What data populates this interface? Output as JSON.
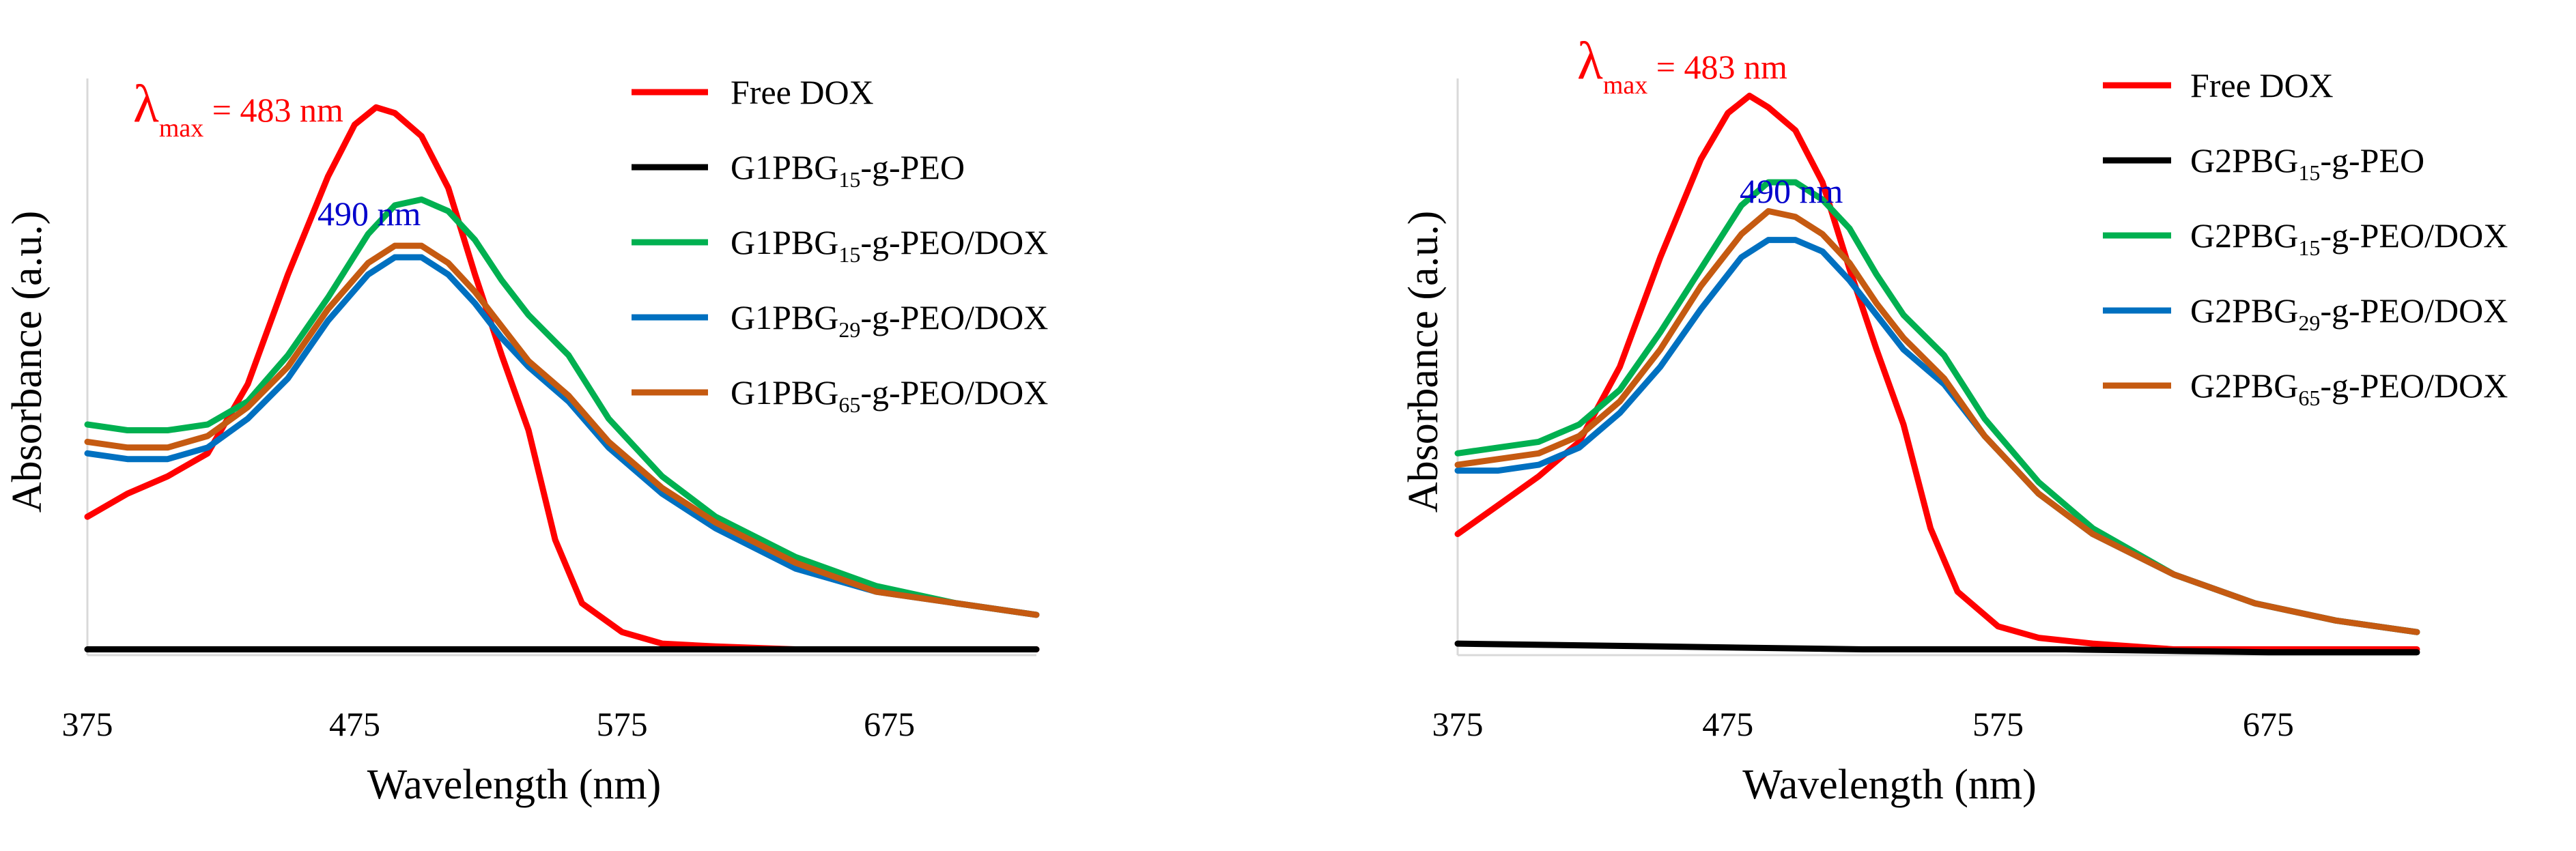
{
  "chart_data": [
    {
      "type": "line",
      "title": "",
      "xlabel": "Wavelength (nm)",
      "ylabel": "Absorbance (a.u.)",
      "xlim": [
        375,
        730
      ],
      "ylim": [
        0,
        1.0
      ],
      "x_ticks": [
        "375",
        "475",
        "575",
        "675"
      ],
      "grid": false,
      "legend_position": "top-right",
      "annotations": [
        {
          "lambda": "λ",
          "subscript": "max",
          "text": " = 483 nm",
          "color": "#ff0000"
        },
        {
          "text": "490 nm",
          "color": "#0000cc"
        }
      ],
      "series": [
        {
          "name_main": "Free DOX",
          "name_sub": "",
          "name_rest": "",
          "color": "#ff0000",
          "x": [
            375,
            390,
            405,
            420,
            435,
            450,
            465,
            475,
            483,
            490,
            500,
            510,
            520,
            530,
            540,
            550,
            560,
            575,
            590,
            610,
            640,
            670,
            700,
            730
          ],
          "y": [
            0.24,
            0.28,
            0.31,
            0.35,
            0.47,
            0.66,
            0.83,
            0.92,
            0.95,
            0.94,
            0.9,
            0.81,
            0.66,
            0.52,
            0.39,
            0.2,
            0.09,
            0.04,
            0.02,
            0.015,
            0.01,
            0.01,
            0.01,
            0.01
          ]
        },
        {
          "name_main": "G1PBG",
          "name_sub": "15",
          "name_rest": "-g-PEO",
          "color": "#000000",
          "x": [
            375,
            450,
            525,
            600,
            675,
            730
          ],
          "y": [
            0.01,
            0.01,
            0.01,
            0.01,
            0.01,
            0.01
          ]
        },
        {
          "name_main": "G1PBG",
          "name_sub": "15",
          "name_rest": "-g-PEO/DOX",
          "color": "#00b050",
          "x": [
            375,
            390,
            405,
            420,
            435,
            450,
            465,
            480,
            490,
            500,
            510,
            520,
            530,
            540,
            555,
            570,
            590,
            610,
            640,
            670,
            700,
            730
          ],
          "y": [
            0.4,
            0.39,
            0.39,
            0.4,
            0.44,
            0.52,
            0.62,
            0.73,
            0.78,
            0.79,
            0.77,
            0.72,
            0.65,
            0.59,
            0.52,
            0.41,
            0.31,
            0.24,
            0.17,
            0.12,
            0.09,
            0.07
          ]
        },
        {
          "name_main": "G1PBG",
          "name_sub": "29",
          "name_rest": "-g-PEO/DOX",
          "color": "#0070c0",
          "x": [
            375,
            390,
            405,
            420,
            435,
            450,
            465,
            480,
            490,
            500,
            510,
            520,
            530,
            540,
            555,
            570,
            590,
            610,
            640,
            670,
            700,
            730
          ],
          "y": [
            0.35,
            0.34,
            0.34,
            0.36,
            0.41,
            0.48,
            0.58,
            0.66,
            0.69,
            0.69,
            0.66,
            0.61,
            0.55,
            0.5,
            0.44,
            0.36,
            0.28,
            0.22,
            0.15,
            0.11,
            0.09,
            0.07
          ]
        },
        {
          "name_main": "G1PBG",
          "name_sub": "65",
          "name_rest": "-g-PEO/DOX",
          "color": "#c55a11",
          "x": [
            375,
            390,
            405,
            420,
            435,
            450,
            465,
            480,
            490,
            500,
            510,
            520,
            530,
            540,
            555,
            570,
            590,
            610,
            640,
            670,
            700,
            730
          ],
          "y": [
            0.37,
            0.36,
            0.36,
            0.38,
            0.43,
            0.5,
            0.6,
            0.68,
            0.71,
            0.71,
            0.68,
            0.63,
            0.57,
            0.51,
            0.45,
            0.37,
            0.29,
            0.23,
            0.16,
            0.11,
            0.09,
            0.07
          ]
        }
      ]
    },
    {
      "type": "line",
      "title": "",
      "xlabel": "Wavelength (nm)",
      "ylabel": "Absorbance (a.u.)",
      "xlim": [
        375,
        730
      ],
      "ylim": [
        0,
        1.0
      ],
      "x_ticks": [
        "375",
        "475",
        "575",
        "675"
      ],
      "grid": false,
      "legend_position": "top-right",
      "annotations": [
        {
          "lambda": "λ",
          "subscript": "max",
          "text": " = 483 nm",
          "color": "#ff0000"
        },
        {
          "text": "490 nm",
          "color": "#0000cc"
        }
      ],
      "series": [
        {
          "name_main": "Free DOX",
          "name_sub": "",
          "name_rest": "",
          "color": "#ff0000",
          "x": [
            375,
            390,
            405,
            420,
            435,
            450,
            465,
            475,
            483,
            490,
            500,
            510,
            520,
            530,
            540,
            550,
            560,
            575,
            590,
            610,
            640,
            670,
            700,
            730
          ],
          "y": [
            0.21,
            0.26,
            0.31,
            0.37,
            0.5,
            0.69,
            0.86,
            0.94,
            0.97,
            0.95,
            0.91,
            0.82,
            0.67,
            0.53,
            0.4,
            0.22,
            0.11,
            0.05,
            0.03,
            0.02,
            0.01,
            0.01,
            0.01,
            0.01
          ]
        },
        {
          "name_main": "G2PBG",
          "name_sub": "15",
          "name_rest": "-g-PEO",
          "color": "#000000",
          "x": [
            375,
            450,
            525,
            600,
            675,
            730
          ],
          "y": [
            0.02,
            0.015,
            0.01,
            0.01,
            0.005,
            0.005
          ]
        },
        {
          "name_main": "G2PBG",
          "name_sub": "15",
          "name_rest": "-g-PEO/DOX",
          "color": "#00b050",
          "x": [
            375,
            390,
            405,
            420,
            435,
            450,
            465,
            480,
            490,
            500,
            510,
            520,
            530,
            540,
            555,
            570,
            590,
            610,
            640,
            670,
            700,
            730
          ],
          "y": [
            0.35,
            0.36,
            0.37,
            0.4,
            0.46,
            0.56,
            0.67,
            0.78,
            0.82,
            0.82,
            0.79,
            0.74,
            0.66,
            0.59,
            0.52,
            0.41,
            0.3,
            0.22,
            0.14,
            0.09,
            0.06,
            0.04
          ]
        },
        {
          "name_main": "G2PBG",
          "name_sub": "29",
          "name_rest": "-g-PEO/DOX",
          "color": "#0070c0",
          "x": [
            375,
            390,
            405,
            420,
            435,
            450,
            465,
            480,
            490,
            500,
            510,
            520,
            530,
            540,
            555,
            570,
            590,
            610,
            640,
            670,
            700,
            730
          ],
          "y": [
            0.32,
            0.32,
            0.33,
            0.36,
            0.42,
            0.5,
            0.6,
            0.69,
            0.72,
            0.72,
            0.7,
            0.65,
            0.59,
            0.53,
            0.47,
            0.38,
            0.28,
            0.21,
            0.14,
            0.09,
            0.06,
            0.04
          ]
        },
        {
          "name_main": "G2PBG",
          "name_sub": "65",
          "name_rest": "-g-PEO/DOX",
          "color": "#c55a11",
          "x": [
            375,
            390,
            405,
            420,
            435,
            450,
            465,
            480,
            490,
            500,
            510,
            520,
            530,
            540,
            555,
            570,
            590,
            610,
            640,
            670,
            700,
            730
          ],
          "y": [
            0.33,
            0.34,
            0.35,
            0.38,
            0.44,
            0.53,
            0.64,
            0.73,
            0.77,
            0.76,
            0.73,
            0.68,
            0.61,
            0.55,
            0.48,
            0.38,
            0.28,
            0.21,
            0.14,
            0.09,
            0.06,
            0.04
          ]
        }
      ]
    }
  ]
}
